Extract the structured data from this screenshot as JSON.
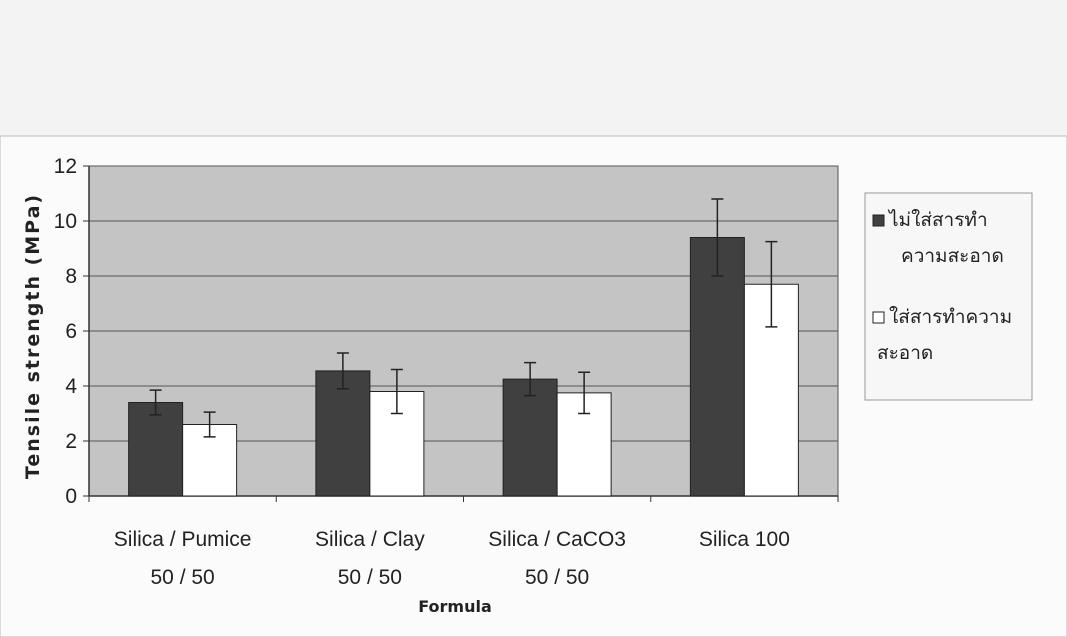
{
  "chart_data": {
    "type": "bar",
    "title": "",
    "xlabel": "Formula",
    "ylabel": "Tensile strength (MPa)",
    "ylim": [
      0,
      12
    ],
    "yticks": [
      "0",
      "2",
      "4",
      "6",
      "8",
      "10",
      "12"
    ],
    "categories": [
      [
        "Silica / Pumice",
        "50 / 50"
      ],
      [
        "Silica / Clay",
        "50 / 50"
      ],
      [
        "Silica / CaCO3",
        "50 / 50"
      ],
      [
        "Silica 100",
        ""
      ]
    ],
    "series": [
      {
        "name_lines": [
          "ไม่ใส่สารทำ",
          "ความสะอาด"
        ],
        "color": "#404040",
        "values": [
          3.4,
          4.55,
          4.25,
          9.4
        ],
        "errors": [
          0.45,
          0.65,
          0.6,
          1.4
        ]
      },
      {
        "name_lines": [
          "ใส่สารทำความ",
          "สะอาด"
        ],
        "color": "#ffffff",
        "values": [
          2.6,
          3.8,
          3.75,
          7.7
        ],
        "errors": [
          0.45,
          0.8,
          0.75,
          1.55
        ]
      }
    ],
    "grid": true,
    "legend_position": "right",
    "plot_background": "#c4c4c4"
  }
}
